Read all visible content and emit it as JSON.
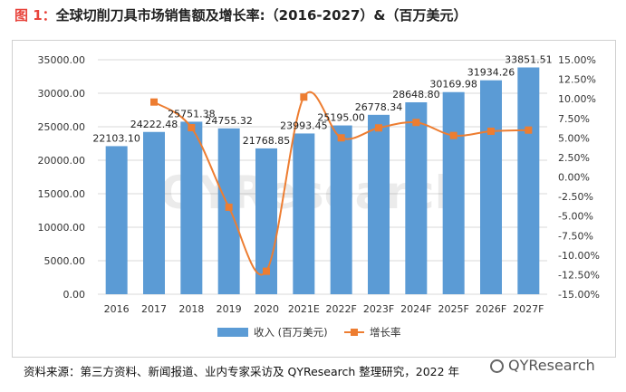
{
  "header": {
    "figure_label": "图 1：",
    "title_text": "全球切削刀具市场销售额及增长率:（2016-2027）&（百万美元）"
  },
  "footer": {
    "source_text": "资料来源：第三方资料、新闻报道、业内专家采访及 QYResearch 整理研究，2022 年",
    "logo_text": "QYResearch"
  },
  "watermark": "QYResearch",
  "colors": {
    "bar": "#5b9bd5",
    "line": "#ed7d31",
    "grid": "#d9d9d9"
  },
  "chart_data": {
    "type": "bar+line",
    "title": "全球切削刀具市场销售额及增长率:（2016-2027）&（百万美元）",
    "categories": [
      "2016",
      "2017",
      "2018",
      "2019",
      "2020",
      "2021E",
      "2022F",
      "2023F",
      "2024F",
      "2025F",
      "2026F",
      "2027F"
    ],
    "series": [
      {
        "name": "收入 (百万美元)",
        "type": "bar",
        "axis": "left",
        "values": [
          22103.1,
          24222.48,
          25751.38,
          24755.32,
          21768.85,
          23993.45,
          25195.0,
          26778.34,
          28648.8,
          30169.98,
          31934.26,
          33851.51
        ],
        "labels": [
          "22103.10",
          "24222.48",
          "25751.38",
          "24755.32",
          "21768.85",
          "23993.45",
          "25195.00",
          "26778.34",
          "28648.80",
          "30169.98",
          "31934.26",
          "33851.51"
        ]
      },
      {
        "name": "增长率",
        "type": "line",
        "axis": "right",
        "values": [
          null,
          9.59,
          6.31,
          -3.87,
          -12.06,
          10.22,
          5.01,
          6.28,
          6.98,
          5.31,
          5.85,
          6.0
        ]
      }
    ],
    "y_left": {
      "min": 0,
      "max": 35000,
      "step": 5000,
      "tick_labels": [
        "0.00",
        "5000.00",
        "10000.00",
        "15000.00",
        "20000.00",
        "25000.00",
        "30000.00",
        "35000.00"
      ]
    },
    "y_right": {
      "min": -15,
      "max": 15,
      "step": 2.5,
      "tick_labels": [
        "-15.00%",
        "-12.50%",
        "-10.00%",
        "-7.50%",
        "-5.00%",
        "-2.50%",
        "0.00%",
        "2.50%",
        "5.00%",
        "7.50%",
        "10.00%",
        "12.50%",
        "15.00%"
      ]
    },
    "legend": [
      "收入 (百万美元)",
      "增长率"
    ],
    "legend_position": "bottom",
    "grid": true
  }
}
